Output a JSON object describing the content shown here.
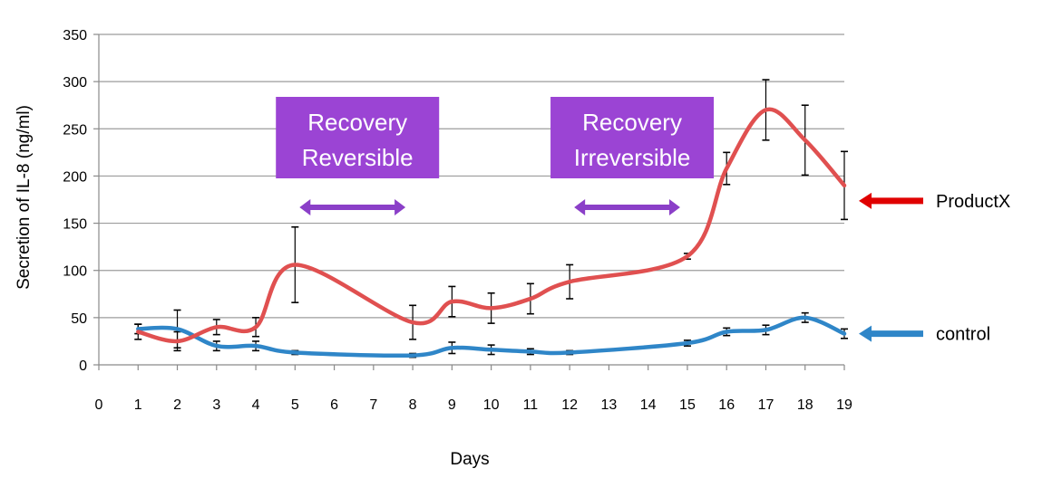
{
  "chart_data": {
    "type": "line",
    "title": "",
    "xlabel": "Days",
    "ylabel": "Secretion of IL-8 (ng/ml)",
    "xlim": [
      0,
      19
    ],
    "ylim": [
      0,
      350
    ],
    "x_ticks": [
      0,
      1,
      2,
      3,
      4,
      5,
      6,
      7,
      8,
      9,
      10,
      11,
      12,
      13,
      14,
      15,
      16,
      17,
      18,
      19
    ],
    "y_ticks": [
      0,
      50,
      100,
      150,
      200,
      250,
      300,
      350
    ],
    "grid": "horizontal",
    "series": [
      {
        "name": "Product X",
        "color": "#e05050",
        "x": [
          1,
          2,
          3,
          4,
          5,
          8,
          9,
          10,
          11,
          12,
          15,
          16,
          17,
          18,
          19
        ],
        "y": [
          35,
          25,
          40,
          40,
          106,
          45,
          67,
          60,
          70,
          88,
          115,
          208,
          270,
          238,
          190
        ],
        "error": [
          8,
          10,
          8,
          10,
          40,
          18,
          16,
          16,
          16,
          18,
          3,
          17,
          32,
          37,
          36
        ]
      },
      {
        "name": "control",
        "color": "#2f86c8",
        "x": [
          1,
          2,
          3,
          4,
          5,
          8,
          9,
          10,
          11,
          12,
          15,
          16,
          17,
          18,
          19
        ],
        "y": [
          38,
          38,
          20,
          20,
          13,
          10,
          18,
          16,
          14,
          13,
          23,
          35,
          37,
          50,
          33
        ],
        "error": [
          5,
          20,
          5,
          5,
          2,
          2,
          6,
          5,
          3,
          2,
          3,
          4,
          5,
          5,
          5
        ]
      }
    ],
    "annotations": [
      {
        "line1": "Recovery",
        "line2": "Reversible",
        "from": 5,
        "to": 8,
        "box_color": "#9b44d4",
        "arrow_color": "#8b3fc8"
      },
      {
        "line1": "Recovery",
        "line2": "Irreversible",
        "from": 12,
        "to": 15,
        "box_color": "#9b44d4",
        "arrow_color": "#8b3fc8"
      }
    ],
    "legend": [
      {
        "label": "ProductX",
        "arrow_color": "#e00000",
        "series": "Product X"
      },
      {
        "label": "control",
        "arrow_color": "#2f86c8",
        "series": "control"
      }
    ]
  }
}
